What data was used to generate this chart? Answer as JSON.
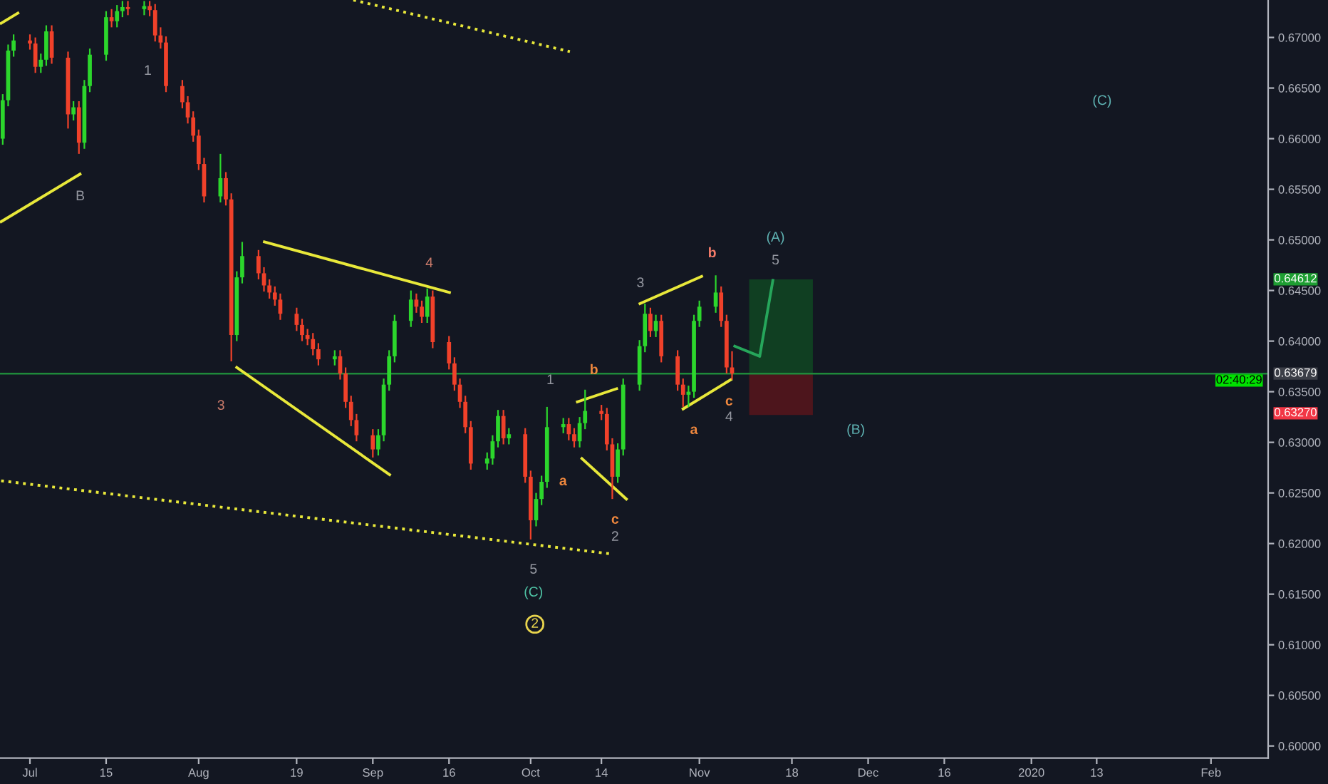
{
  "chart_data": {
    "type": "candlestick",
    "x": [
      "2019-06-26",
      "2019-06-27",
      "2019-06-28",
      "2019-07-01",
      "2019-07-02",
      "2019-07-03",
      "2019-07-04",
      "2019-07-05",
      "2019-07-08",
      "2019-07-09",
      "2019-07-10",
      "2019-07-11",
      "2019-07-12",
      "2019-07-15",
      "2019-07-16",
      "2019-07-17",
      "2019-07-18",
      "2019-07-19",
      "2019-07-22",
      "2019-07-23",
      "2019-07-24",
      "2019-07-25",
      "2019-07-26",
      "2019-07-29",
      "2019-07-30",
      "2019-07-31",
      "2019-08-01",
      "2019-08-02",
      "2019-08-05",
      "2019-08-06",
      "2019-08-07",
      "2019-08-08",
      "2019-08-09",
      "2019-08-12",
      "2019-08-13",
      "2019-08-14",
      "2019-08-15",
      "2019-08-16",
      "2019-08-19",
      "2019-08-20",
      "2019-08-21",
      "2019-08-22",
      "2019-08-23",
      "2019-08-26",
      "2019-08-27",
      "2019-08-28",
      "2019-08-29",
      "2019-08-30",
      "2019-09-02",
      "2019-09-03",
      "2019-09-04",
      "2019-09-05",
      "2019-09-06",
      "2019-09-09",
      "2019-09-10",
      "2019-09-11",
      "2019-09-12",
      "2019-09-13",
      "2019-09-16",
      "2019-09-17",
      "2019-09-18",
      "2019-09-19",
      "2019-09-20",
      "2019-09-23",
      "2019-09-24",
      "2019-09-25",
      "2019-09-26",
      "2019-09-27",
      "2019-09-30",
      "2019-10-01",
      "2019-10-02",
      "2019-10-03",
      "2019-10-04",
      "2019-10-07",
      "2019-10-08",
      "2019-10-09",
      "2019-10-10",
      "2019-10-11",
      "2019-10-14",
      "2019-10-15",
      "2019-10-16",
      "2019-10-17",
      "2019-10-18",
      "2019-10-21",
      "2019-10-22",
      "2019-10-23",
      "2019-10-24",
      "2019-10-25",
      "2019-10-28",
      "2019-10-29",
      "2019-10-30",
      "2019-10-31",
      "2019-11-01",
      "2019-11-04",
      "2019-11-05",
      "2019-11-06",
      "2019-11-07"
    ],
    "ohlc": [
      [
        0.66,
        0.6644,
        0.6594,
        0.6638
      ],
      [
        0.6638,
        0.6693,
        0.6632,
        0.6687
      ],
      [
        0.6687,
        0.6703,
        0.6681,
        0.6697
      ],
      [
        0.6697,
        0.6703,
        0.6688,
        0.6694
      ],
      [
        0.6694,
        0.67,
        0.6665,
        0.6671
      ],
      [
        0.6671,
        0.6684,
        0.6665,
        0.6678
      ],
      [
        0.6678,
        0.6712,
        0.6672,
        0.6706
      ],
      [
        0.6706,
        0.6712,
        0.6674,
        0.668
      ],
      [
        0.668,
        0.6686,
        0.661,
        0.6624
      ],
      [
        0.6624,
        0.6637,
        0.6618,
        0.6631
      ],
      [
        0.6631,
        0.6637,
        0.6585,
        0.6596
      ],
      [
        0.6596,
        0.6658,
        0.659,
        0.6652
      ],
      [
        0.6652,
        0.6689,
        0.6646,
        0.6683
      ],
      [
        0.6683,
        0.6726,
        0.6677,
        0.672
      ],
      [
        0.672,
        0.6728,
        0.671,
        0.6716
      ],
      [
        0.6716,
        0.6732,
        0.671,
        0.6726
      ],
      [
        0.6726,
        0.6736,
        0.672,
        0.673
      ],
      [
        0.673,
        0.6736,
        0.6722,
        0.6728
      ],
      [
        0.6728,
        0.6736,
        0.6722,
        0.6731
      ],
      [
        0.6731,
        0.6736,
        0.6721,
        0.6727
      ],
      [
        0.6727,
        0.6733,
        0.6696,
        0.6702
      ],
      [
        0.6702,
        0.671,
        0.6689,
        0.6695
      ],
      [
        0.6695,
        0.6701,
        0.6646,
        0.6652
      ],
      [
        0.6652,
        0.6658,
        0.663,
        0.6636
      ],
      [
        0.6636,
        0.6642,
        0.6615,
        0.6621
      ],
      [
        0.6621,
        0.6627,
        0.6597,
        0.6603
      ],
      [
        0.6603,
        0.6609,
        0.6569,
        0.6575
      ],
      [
        0.6575,
        0.6581,
        0.6537,
        0.6543
      ],
      [
        0.6543,
        0.6585,
        0.6537,
        0.6561
      ],
      [
        0.6561,
        0.6567,
        0.6534,
        0.654
      ],
      [
        0.654,
        0.6546,
        0.638,
        0.6406
      ],
      [
        0.6406,
        0.6469,
        0.64,
        0.6463
      ],
      [
        0.6463,
        0.6498,
        0.6457,
        0.6484
      ],
      [
        0.6484,
        0.649,
        0.6461,
        0.6467
      ],
      [
        0.6467,
        0.6473,
        0.6449,
        0.6455
      ],
      [
        0.6455,
        0.6461,
        0.6442,
        0.6448
      ],
      [
        0.6448,
        0.6454,
        0.6435,
        0.6441
      ],
      [
        0.6441,
        0.6447,
        0.6421,
        0.6427
      ],
      [
        0.6427,
        0.6433,
        0.641,
        0.6416
      ],
      [
        0.6416,
        0.6422,
        0.64,
        0.6406
      ],
      [
        0.6406,
        0.6412,
        0.6396,
        0.6402
      ],
      [
        0.6402,
        0.6408,
        0.6386,
        0.6392
      ],
      [
        0.6392,
        0.6398,
        0.6376,
        0.6382
      ],
      [
        0.6382,
        0.6391,
        0.6376,
        0.6385
      ],
      [
        0.6385,
        0.6391,
        0.6362,
        0.6368
      ],
      [
        0.6368,
        0.6374,
        0.6334,
        0.634
      ],
      [
        0.634,
        0.6346,
        0.6316,
        0.6322
      ],
      [
        0.6322,
        0.6328,
        0.6301,
        0.6307
      ],
      [
        0.6307,
        0.6313,
        0.6285,
        0.6293
      ],
      [
        0.6293,
        0.6313,
        0.6287,
        0.6307
      ],
      [
        0.6307,
        0.6363,
        0.6301,
        0.6357
      ],
      [
        0.6357,
        0.6391,
        0.6351,
        0.6385
      ],
      [
        0.6385,
        0.6426,
        0.6379,
        0.642
      ],
      [
        0.642,
        0.645,
        0.6414,
        0.6441
      ],
      [
        0.6441,
        0.6447,
        0.6428,
        0.6434
      ],
      [
        0.6434,
        0.644,
        0.6418,
        0.6424
      ],
      [
        0.6424,
        0.6452,
        0.6418,
        0.6444
      ],
      [
        0.6444,
        0.645,
        0.6393,
        0.6399
      ],
      [
        0.6399,
        0.6405,
        0.6372,
        0.6378
      ],
      [
        0.6378,
        0.6384,
        0.6351,
        0.6357
      ],
      [
        0.6357,
        0.6363,
        0.6334,
        0.634
      ],
      [
        0.634,
        0.6346,
        0.6309,
        0.6315
      ],
      [
        0.6315,
        0.6321,
        0.6273,
        0.6279
      ],
      [
        0.6279,
        0.629,
        0.6273,
        0.6284
      ],
      [
        0.6284,
        0.6307,
        0.6278,
        0.6301
      ],
      [
        0.6301,
        0.6332,
        0.6295,
        0.6326
      ],
      [
        0.6326,
        0.6332,
        0.6298,
        0.6304
      ],
      [
        0.6304,
        0.6314,
        0.6298,
        0.6308
      ],
      [
        0.6308,
        0.6314,
        0.626,
        0.6266
      ],
      [
        0.6266,
        0.6272,
        0.6204,
        0.6223
      ],
      [
        0.6223,
        0.625,
        0.6217,
        0.6244
      ],
      [
        0.6244,
        0.6267,
        0.6238,
        0.6261
      ],
      [
        0.6261,
        0.6335,
        0.6255,
        0.6315
      ],
      [
        0.6315,
        0.6324,
        0.6309,
        0.6318
      ],
      [
        0.6318,
        0.6324,
        0.6302,
        0.6308
      ],
      [
        0.6308,
        0.6314,
        0.6295,
        0.6301
      ],
      [
        0.6301,
        0.6325,
        0.6295,
        0.6319
      ],
      [
        0.6319,
        0.6352,
        0.6313,
        0.6331
      ],
      [
        0.6331,
        0.6337,
        0.6322,
        0.6328
      ],
      [
        0.6328,
        0.6334,
        0.6292,
        0.6298
      ],
      [
        0.6298,
        0.6304,
        0.6244,
        0.6266
      ],
      [
        0.6266,
        0.6299,
        0.626,
        0.6293
      ],
      [
        0.6293,
        0.6363,
        0.6287,
        0.6357
      ],
      [
        0.6357,
        0.6401,
        0.6351,
        0.6395
      ],
      [
        0.6395,
        0.6437,
        0.6389,
        0.6427
      ],
      [
        0.6427,
        0.6433,
        0.6404,
        0.641
      ],
      [
        0.641,
        0.6426,
        0.6404,
        0.642
      ],
      [
        0.642,
        0.6426,
        0.6379,
        0.6385
      ],
      [
        0.6385,
        0.6391,
        0.6351,
        0.6357
      ],
      [
        0.6357,
        0.6363,
        0.6335,
        0.6347
      ],
      [
        0.6347,
        0.6356,
        0.6335,
        0.635
      ],
      [
        0.635,
        0.6426,
        0.6344,
        0.642
      ],
      [
        0.642,
        0.644,
        0.6414,
        0.6434
      ],
      [
        0.6434,
        0.6465,
        0.6428,
        0.6448
      ],
      [
        0.6448,
        0.6454,
        0.6414,
        0.642
      ],
      [
        0.642,
        0.6426,
        0.6368,
        0.6374
      ],
      [
        0.6374,
        0.639,
        0.6362,
        0.6368
      ]
    ],
    "colors": [
      "#2cd62c",
      "#2cd62c",
      "#2cd62c",
      "#f0412a",
      "#f0412a",
      "#2cd62c",
      "#2cd62c",
      "#f0412a",
      "#f0412a",
      "#2cd62c",
      "#f0412a",
      "#2cd62c",
      "#2cd62c",
      "#2cd62c",
      "#f0412a",
      "#2cd62c",
      "#2cd62c",
      "#f0412a",
      "#2cd62c",
      "#f0412a",
      "#f0412a",
      "#f0412a",
      "#f0412a",
      "#f0412a",
      "#f0412a",
      "#f0412a",
      "#f0412a",
      "#f0412a",
      "#2cd62c",
      "#f0412a",
      "#f0412a",
      "#2cd62c",
      "#2cd62c",
      "#f0412a",
      "#f0412a",
      "#f0412a",
      "#f0412a",
      "#f0412a",
      "#f0412a",
      "#f0412a",
      "#f0412a",
      "#f0412a",
      "#f0412a",
      "#2cd62c",
      "#f0412a",
      "#f0412a",
      "#f0412a",
      "#f0412a",
      "#f0412a",
      "#2cd62c",
      "#2cd62c",
      "#2cd62c",
      "#2cd62c",
      "#2cd62c",
      "#f0412a",
      "#f0412a",
      "#2cd62c",
      "#f0412a",
      "#f0412a",
      "#f0412a",
      "#f0412a",
      "#f0412a",
      "#f0412a",
      "#2cd62c",
      "#2cd62c",
      "#2cd62c",
      "#f0412a",
      "#2cd62c",
      "#f0412a",
      "#f0412a",
      "#2cd62c",
      "#2cd62c",
      "#2cd62c",
      "#2cd62c",
      "#f0412a",
      "#f0412a",
      "#2cd62c",
      "#2cd62c",
      "#f0412a",
      "#f0412a",
      "#f0412a",
      "#2cd62c",
      "#2cd62c",
      "#2cd62c",
      "#2cd62c",
      "#f0412a",
      "#2cd62c",
      "#f0412a",
      "#f0412a",
      "#f0412a",
      "#2cd62c",
      "#2cd62c",
      "#2cd62c",
      "#2cd62c",
      "#f0412a",
      "#f0412a",
      "#f0412a"
    ],
    "series": [
      {
        "type": "bar",
        "x": [
          "2019-11-16"
        ],
        "base": [
          0.6368
        ],
        "values": [
          0.0093
        ],
        "color": "#103f22"
      },
      {
        "type": "bar",
        "x": [
          "2019-11-16"
        ],
        "base": [
          0.6327
        ],
        "values": [
          0.0041
        ],
        "color": "#4d151c"
      },
      {
        "type": "line",
        "x": [
          "2019-06-25T17:00",
          "2019-06-28T19:00"
        ],
        "values": [
          0.6714,
          0.6724
        ],
        "color": "#e8e83a"
      },
      {
        "type": "line",
        "x": [
          "2019-06-25T17:00",
          "2019-07-10T05:00"
        ],
        "values": [
          0.6518,
          0.6565
        ],
        "color": "#e8e83a"
      },
      {
        "type": "line",
        "x": [
          "2019-08-13T02:00",
          "2019-09-16T02:00"
        ],
        "values": [
          0.6498,
          0.6448
        ],
        "color": "#e8e83a"
      },
      {
        "type": "line",
        "x": [
          "2019-08-08",
          "2019-09-05T02:00"
        ],
        "values": [
          0.6374,
          0.6268
        ],
        "color": "#e8e83a"
      },
      {
        "type": "line",
        "x": [
          "2019-10-09T14:00",
          "2019-10-16T19:00"
        ],
        "values": [
          0.634,
          0.6353
        ],
        "color": "#e8e83a"
      },
      {
        "type": "line",
        "x": [
          "2019-10-10T10:00",
          "2019-10-18T14:00"
        ],
        "values": [
          0.6284,
          0.6244
        ],
        "color": "#e8e83a"
      },
      {
        "type": "line",
        "x": [
          "2019-10-21T02:00",
          "2019-11-01T10:00"
        ],
        "values": [
          0.6437,
          0.6464
        ],
        "color": "#e8e83a"
      },
      {
        "type": "line",
        "x": [
          "2019-10-29",
          "2019-11-06T19:00"
        ],
        "values": [
          0.6333,
          0.6362
        ],
        "color": "#e8e83a"
      },
      {
        "type": "line",
        "x": [
          "2019-08-29T10:00",
          "2019-10-08T05:00"
        ],
        "values": [
          0.6737,
          0.6686
        ],
        "color": "#e8e83a",
        "line_style": "dotted"
      },
      {
        "type": "line",
        "x": [
          "2019-06-25T17:00",
          "2019-10-15T10:00"
        ],
        "values": [
          0.6262,
          0.619
        ],
        "color": "#e8e83a",
        "line_style": "dotted"
      },
      {
        "type": "line",
        "x": [
          "2019-11-07T12:00",
          "2019-11-12T02:00",
          "2019-11-14T12:00"
        ],
        "values": [
          0.6395,
          0.6385,
          0.646
        ],
        "color": "#26a65b"
      }
    ],
    "ref_lines": [
      {
        "axis": "y",
        "value": 0.63679,
        "label": "0.63679",
        "color": "#1f8a3a"
      }
    ],
    "annotations": [
      "1",
      "B",
      "3",
      "4",
      "1",
      "b",
      "a",
      "c",
      "2",
      "3",
      "b",
      "a",
      "c",
      "4",
      "(A)",
      "5",
      "(B)",
      "(C)",
      "5",
      "(C)",
      "2",
      "0.64612",
      "0.63270",
      "02:40:29"
    ],
    "xlim": [
      "2019-06-25T12:00",
      "2020-02-13T12:00"
    ],
    "ylim": [
      0.5988,
      0.6737
    ],
    "xticks": [
      {
        "value": "2019-07-01",
        "label": "Jul"
      },
      {
        "value": "2019-07-15",
        "label": "15"
      },
      {
        "value": "2019-08-01",
        "label": "Aug"
      },
      {
        "value": "2019-08-19",
        "label": "19"
      },
      {
        "value": "2019-09-02",
        "label": "Sep"
      },
      {
        "value": "2019-09-16",
        "label": "16"
      },
      {
        "value": "2019-10-01",
        "label": "Oct"
      },
      {
        "value": "2019-10-14",
        "label": "14"
      },
      {
        "value": "2019-11-01",
        "label": "Nov"
      },
      {
        "value": "2019-11-18",
        "label": "18"
      },
      {
        "value": "2019-12-02",
        "label": "Dec"
      },
      {
        "value": "2019-12-16",
        "label": "16"
      },
      {
        "value": "2020-01-01",
        "label": "2020"
      },
      {
        "value": "2020-01-13",
        "label": "13"
      },
      {
        "value": "2020-02-03",
        "label": "Feb"
      }
    ],
    "yticks": [
      {
        "value": 0.6,
        "label": "0.60000"
      },
      {
        "value": 0.605,
        "label": "0.60500"
      },
      {
        "value": 0.61,
        "label": "0.61000"
      },
      {
        "value": 0.615,
        "label": "0.61500"
      },
      {
        "value": 0.62,
        "label": "0.62000"
      },
      {
        "value": 0.625,
        "label": "0.62500"
      },
      {
        "value": 0.63,
        "label": "0.63000"
      },
      {
        "value": 0.635,
        "label": "0.63500"
      },
      {
        "value": 0.64,
        "label": "0.64000"
      },
      {
        "value": 0.645,
        "label": "0.64500"
      },
      {
        "value": 0.65,
        "label": "0.65000"
      },
      {
        "value": 0.655,
        "label": "0.65500"
      },
      {
        "value": 0.66,
        "label": "0.66000"
      },
      {
        "value": 0.665,
        "label": "0.66500"
      },
      {
        "value": 0.67,
        "label": "0.67000"
      }
    ],
    "grid": false,
    "legend": false
  }
}
